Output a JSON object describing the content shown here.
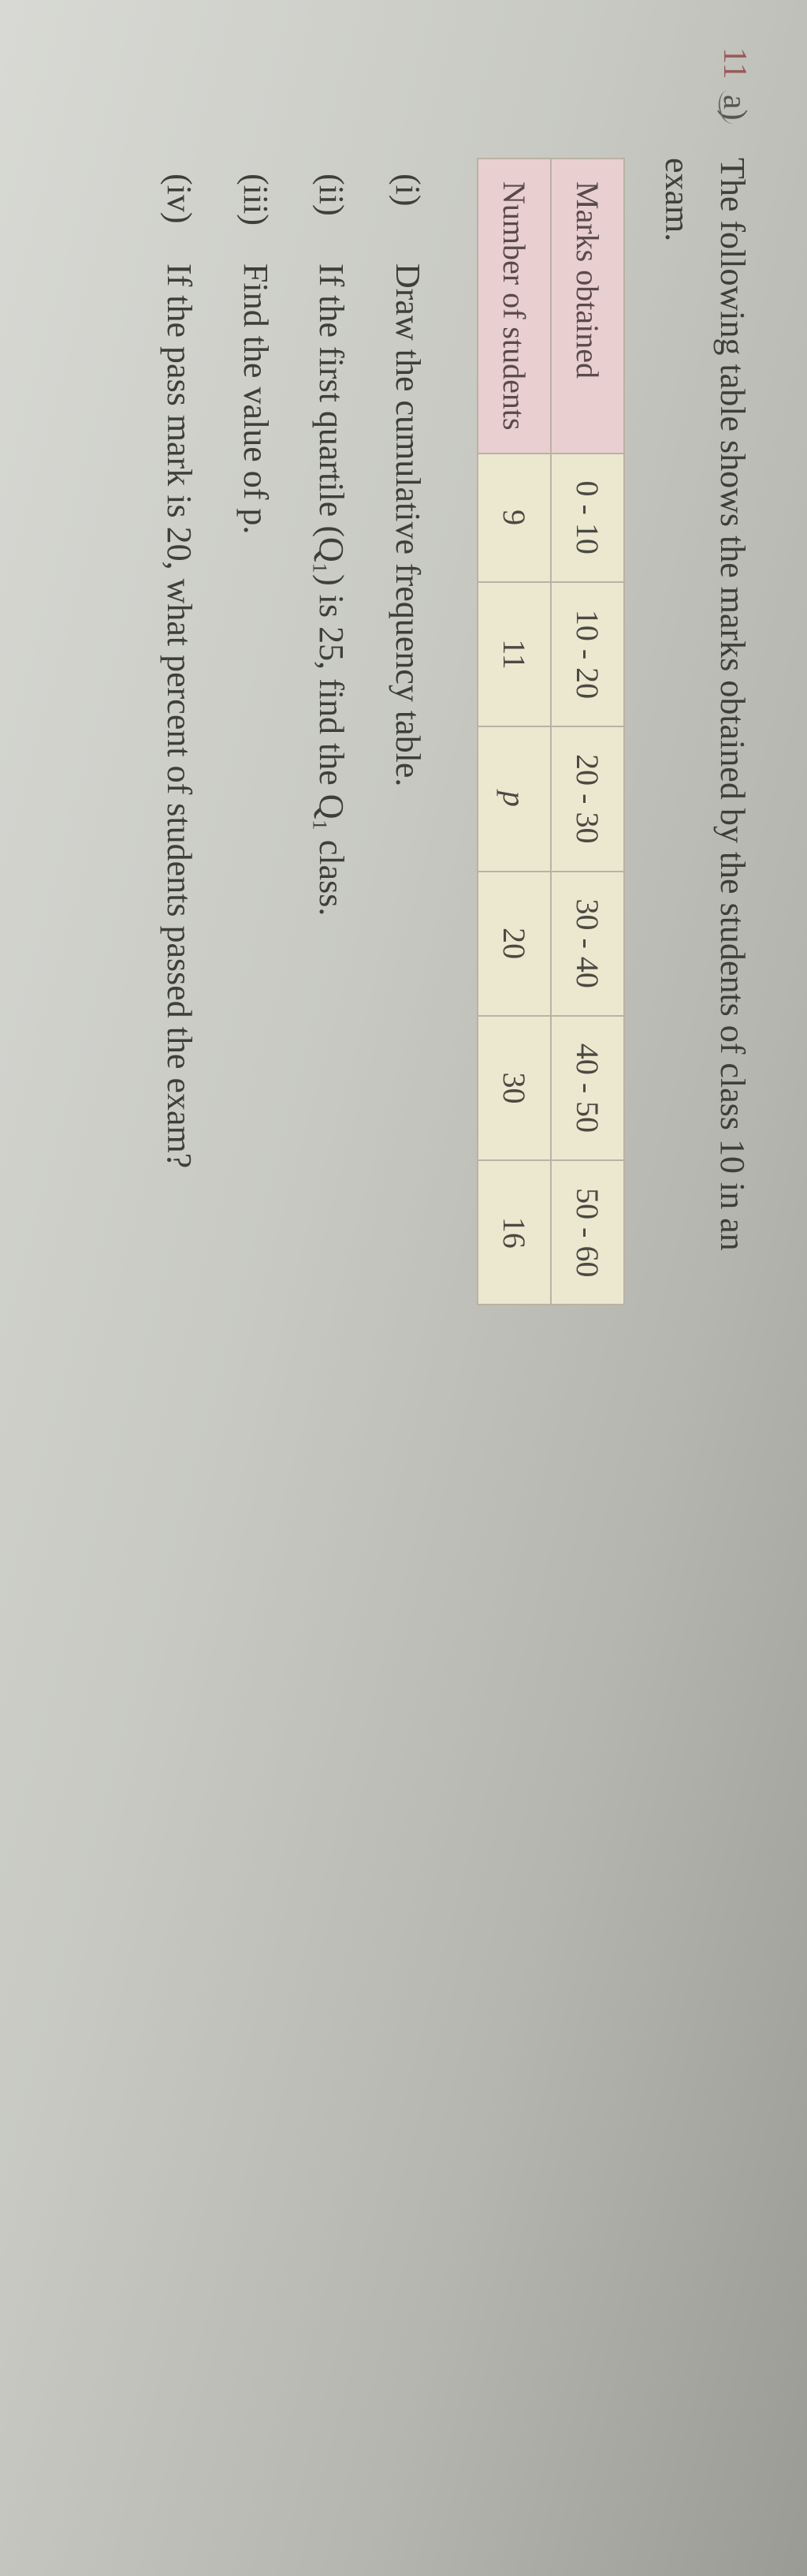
{
  "question": {
    "number": "11",
    "letter": "a)",
    "stem_line1": "The following table shows the marks obtained by the students of class 10 in an",
    "stem_line2": "exam."
  },
  "table": {
    "row_headers": [
      "Marks obtained",
      "Number of students"
    ],
    "columns": [
      "0 - 10",
      "10 - 20",
      "20 - 30",
      "30 - 40",
      "40 - 50",
      "50 - 60"
    ],
    "values": [
      "9",
      "11",
      "p",
      "20",
      "30",
      "16"
    ],
    "header_bg": "#e9cfd0",
    "data_bg": "#ece7cf",
    "border_color": "#b9b2a6",
    "font_size_pt": 40
  },
  "subparts": {
    "i": {
      "label": "(i)",
      "text": "Draw the cumulative frequency table."
    },
    "ii": {
      "label": "(ii)",
      "text": "If the first quartile (Q₁) is 25, find the Q₁ class."
    },
    "iii": {
      "label": "(iii)",
      "text": "Find the value of p."
    },
    "iv": {
      "label": "(iv)",
      "text": "If the pass mark is 20, what percent of students passed the exam?"
    }
  },
  "style": {
    "page_bg_gradient": [
      "#d8d9d4",
      "#c8c9c3",
      "#b5b6af",
      "#9a9b94"
    ],
    "text_color": "#3f3f3a",
    "qnum_color": "#9a5a5a"
  }
}
